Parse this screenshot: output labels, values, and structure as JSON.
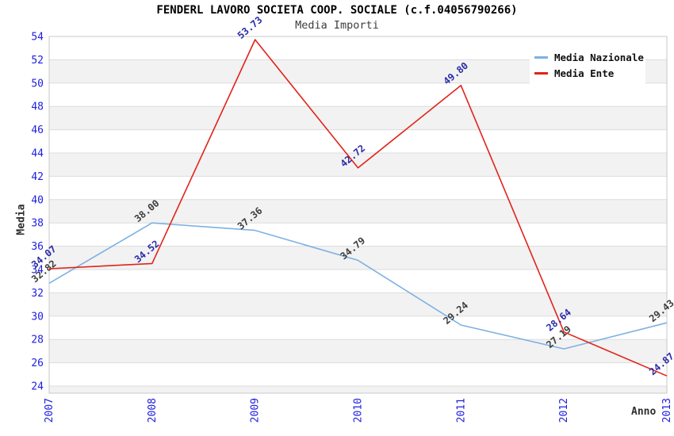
{
  "chart_data": {
    "type": "line",
    "title": "FENDERL LAVORO SOCIETA COOP. SOCIALE (c.f.04056790266)",
    "subtitle": "Media Importi",
    "xlabel": "Anno",
    "ylabel": "Media",
    "categories": [
      "2007",
      "2008",
      "2009",
      "2010",
      "2011",
      "2012",
      "2013"
    ],
    "series": [
      {
        "name": "Media Nazionale",
        "color": "#7db1e2",
        "label_color": "#3d3d3d",
        "values": [
          32.82,
          38.0,
          37.36,
          34.79,
          29.24,
          27.19,
          29.43
        ]
      },
      {
        "name": "Media Ente",
        "color": "#e2231a",
        "label_color": "#2b2ba8",
        "values": [
          34.07,
          34.52,
          53.73,
          42.72,
          49.8,
          28.64,
          24.87
        ]
      }
    ],
    "ylim": [
      24,
      54
    ],
    "ytick_step": 2,
    "grid": true,
    "legend_position": "top-right",
    "value_label_decimals": 2,
    "colors": {
      "tick_labels": "#1d1de0",
      "band": "#f2f2f2",
      "gridline": "#dcdcdc",
      "plot_border": "#c8c8c8",
      "plot_background": "#ffffff"
    }
  }
}
